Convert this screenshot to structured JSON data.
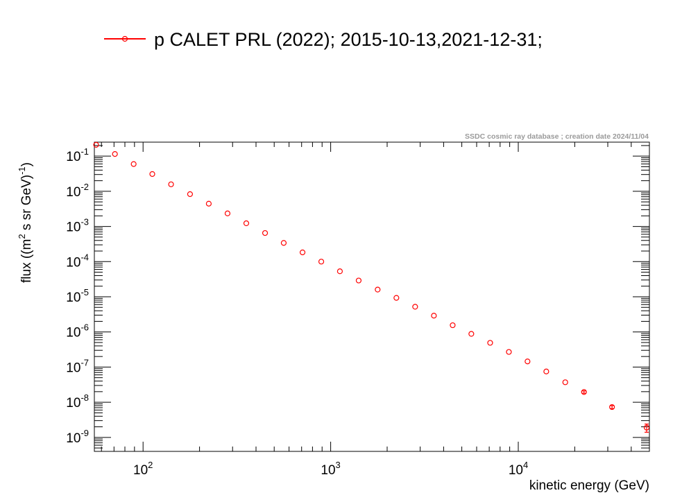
{
  "chart_data": {
    "type": "scatter",
    "title": "",
    "xlabel": "kinetic energy (GeV)",
    "ylabel_parts": [
      "flux ((m",
      "2",
      " s sr GeV)",
      "-1",
      ")"
    ],
    "xscale": "log",
    "yscale": "log",
    "xlim": [
      55,
      50000
    ],
    "ylim": [
      4e-10,
      0.25
    ],
    "x_tick_labels": [
      {
        "value": 100,
        "base": "10",
        "exp": "2"
      },
      {
        "value": 1000,
        "base": "10",
        "exp": "3"
      },
      {
        "value": 10000,
        "base": "10",
        "exp": "4"
      }
    ],
    "y_tick_labels": [
      {
        "value": 0.1,
        "base": "10",
        "exp": "-1"
      },
      {
        "value": 0.01,
        "base": "10",
        "exp": "-2"
      },
      {
        "value": 0.001,
        "base": "10",
        "exp": "-3"
      },
      {
        "value": 0.0001,
        "base": "10",
        "exp": "-4"
      },
      {
        "value": 1e-05,
        "base": "10",
        "exp": "-5"
      },
      {
        "value": 1e-06,
        "base": "10",
        "exp": "-6"
      },
      {
        "value": 1e-07,
        "base": "10",
        "exp": "-7"
      },
      {
        "value": 1e-08,
        "base": "10",
        "exp": "-8"
      },
      {
        "value": 1e-09,
        "base": "10",
        "exp": "-9"
      }
    ],
    "legend_position": "top-center",
    "grid": false,
    "credit": "SSDC cosmic ray database ; creation date 2024/11/04",
    "series": [
      {
        "name": "p CALET PRL (2022); 2015-10-13,2021-12-31;",
        "color": "#ff0000",
        "marker": "open-circle",
        "x": [
          56.2,
          70.8,
          89.1,
          112,
          141,
          178,
          224,
          282,
          355,
          447,
          562,
          708,
          891,
          1120,
          1410,
          1780,
          2240,
          2820,
          3550,
          4470,
          5620,
          7080,
          8910,
          11200,
          14100,
          17800,
          22400,
          31600,
          50000
        ],
        "y": [
          0.21,
          0.115,
          0.0595,
          0.031,
          0.0158,
          0.0083,
          0.00445,
          0.00235,
          0.00123,
          0.00065,
          0.00034,
          0.000183,
          0.0001,
          5.3e-05,
          2.9e-05,
          1.6e-05,
          9.3e-06,
          5.2e-06,
          2.9e-06,
          1.55e-06,
          8.8e-07,
          4.9e-07,
          2.7e-07,
          1.45e-07,
          7.5e-08,
          3.7e-08,
          1.95e-08,
          7.3e-09,
          1.9e-09
        ],
        "y_err": [
          0,
          0,
          0,
          0,
          0,
          0,
          0,
          0,
          0,
          0,
          0,
          0,
          0,
          0,
          0,
          0,
          0,
          0,
          0,
          0,
          0,
          0,
          0,
          0,
          0,
          0,
          1.5e-09,
          7e-10,
          5e-10
        ]
      }
    ]
  }
}
